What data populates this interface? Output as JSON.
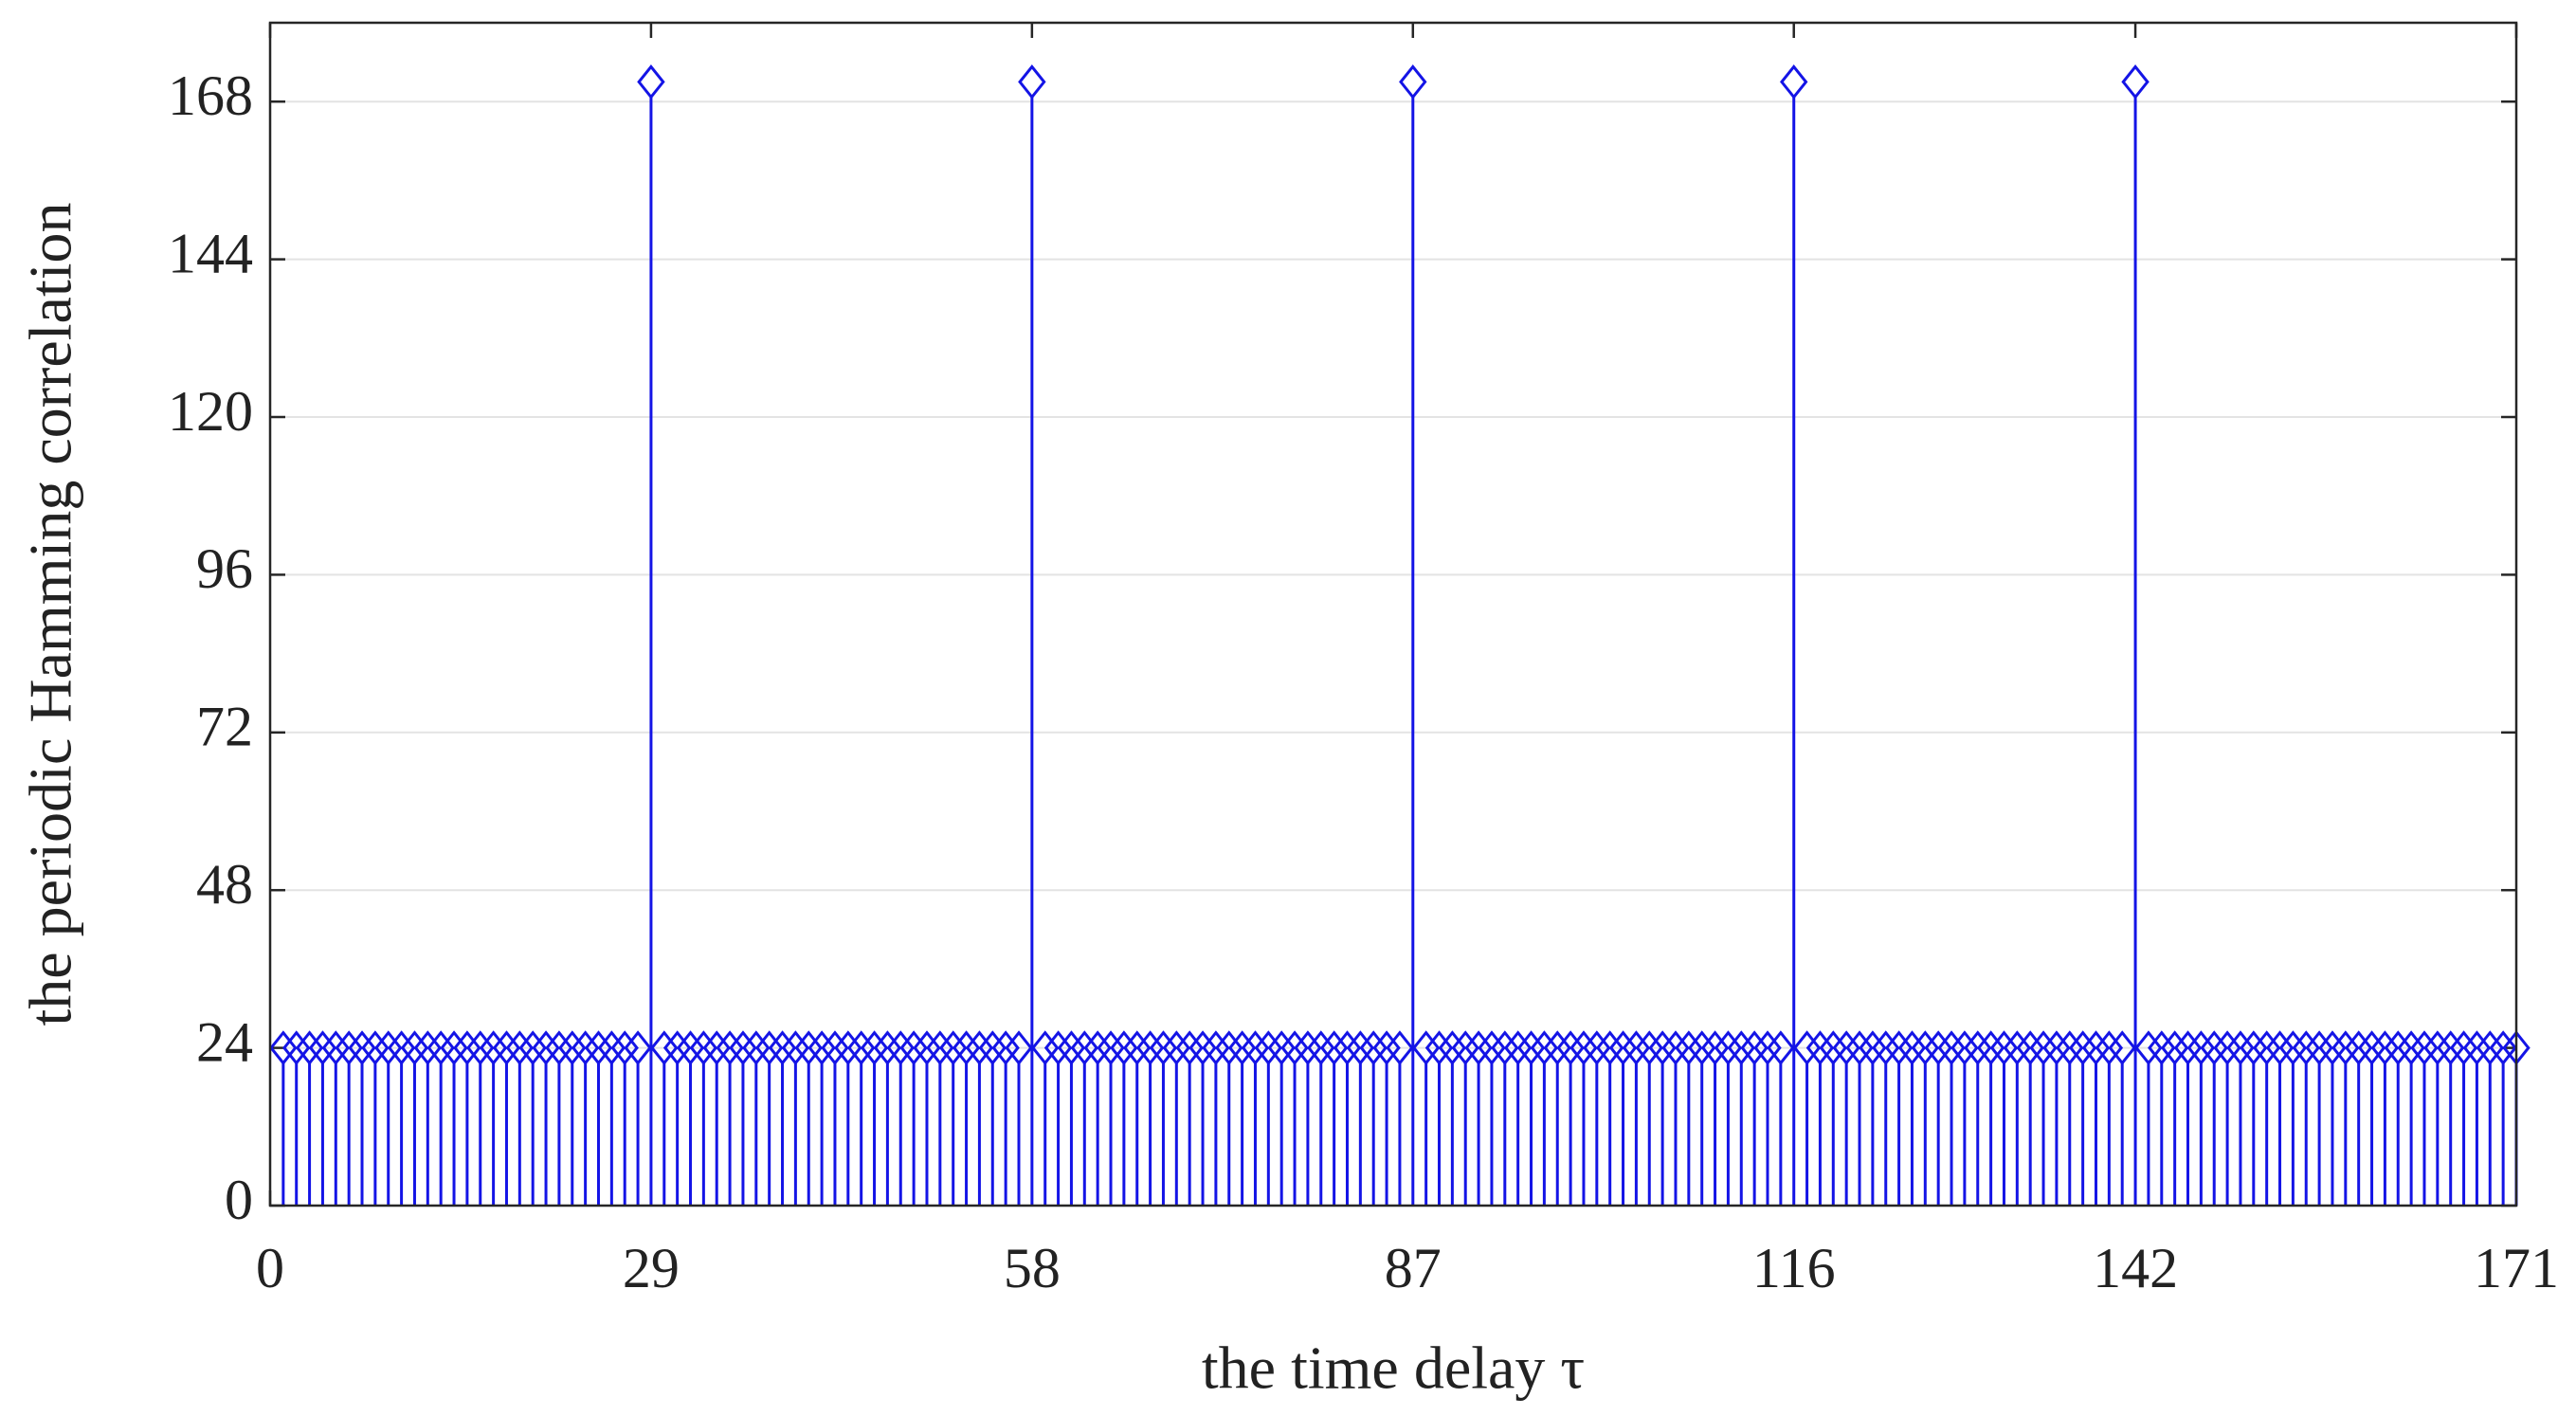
{
  "chart_data": {
    "type": "stem",
    "x_label": "the time delay τ",
    "y_label": "the periodic Hamming correlation",
    "x": [
      1,
      2,
      3,
      4,
      5,
      6,
      7,
      8,
      9,
      10,
      11,
      12,
      13,
      14,
      15,
      16,
      17,
      18,
      19,
      20,
      21,
      22,
      23,
      24,
      25,
      26,
      27,
      28,
      29,
      30,
      31,
      32,
      33,
      34,
      35,
      36,
      37,
      38,
      39,
      40,
      41,
      42,
      43,
      44,
      45,
      46,
      47,
      48,
      49,
      50,
      51,
      52,
      53,
      54,
      55,
      56,
      57,
      58,
      59,
      60,
      61,
      62,
      63,
      64,
      65,
      66,
      67,
      68,
      69,
      70,
      71,
      72,
      73,
      74,
      75,
      76,
      77,
      78,
      79,
      80,
      81,
      82,
      83,
      84,
      85,
      86,
      87,
      88,
      89,
      90,
      91,
      92,
      93,
      94,
      95,
      96,
      97,
      98,
      99,
      100,
      101,
      102,
      103,
      104,
      105,
      106,
      107,
      108,
      109,
      110,
      111,
      112,
      113,
      114,
      115,
      116,
      117,
      118,
      119,
      120,
      121,
      122,
      123,
      124,
      125,
      126,
      127,
      128,
      129,
      130,
      131,
      132,
      133,
      134,
      135,
      136,
      137,
      138,
      139,
      140,
      141,
      142,
      143,
      144,
      145,
      146,
      147,
      148,
      149,
      150,
      151,
      152,
      153,
      154,
      155,
      156,
      157,
      158,
      159,
      160,
      161,
      162,
      163,
      164,
      165,
      166,
      167,
      168,
      169,
      170,
      171
    ],
    "values": [
      24,
      24,
      24,
      24,
      24,
      24,
      24,
      24,
      24,
      24,
      24,
      24,
      24,
      24,
      24,
      24,
      24,
      24,
      24,
      24,
      24,
      24,
      24,
      24,
      24,
      24,
      24,
      24,
      171,
      24,
      24,
      24,
      24,
      24,
      24,
      24,
      24,
      24,
      24,
      24,
      24,
      24,
      24,
      24,
      24,
      24,
      24,
      24,
      24,
      24,
      24,
      24,
      24,
      24,
      24,
      24,
      24,
      171,
      24,
      24,
      24,
      24,
      24,
      24,
      24,
      24,
      24,
      24,
      24,
      24,
      24,
      24,
      24,
      24,
      24,
      24,
      24,
      24,
      24,
      24,
      24,
      24,
      24,
      24,
      24,
      24,
      171,
      24,
      24,
      24,
      24,
      24,
      24,
      24,
      24,
      24,
      24,
      24,
      24,
      24,
      24,
      24,
      24,
      24,
      24,
      24,
      24,
      24,
      24,
      24,
      24,
      24,
      24,
      24,
      24,
      171,
      24,
      24,
      24,
      24,
      24,
      24,
      24,
      24,
      24,
      24,
      24,
      24,
      24,
      24,
      24,
      24,
      24,
      24,
      24,
      24,
      24,
      24,
      24,
      24,
      24,
      171,
      24,
      24,
      24,
      24,
      24,
      24,
      24,
      24,
      24,
      24,
      24,
      24,
      24,
      24,
      24,
      24,
      24,
      24,
      24,
      24,
      24,
      24,
      24,
      24,
      24,
      24,
      24,
      24,
      24
    ],
    "color": "#1414e6",
    "xlim": [
      0,
      171
    ],
    "xticks": [
      0,
      29,
      58,
      87,
      116,
      142,
      171
    ],
    "ylim": [
      0,
      180
    ],
    "yticks": [
      0,
      24,
      48,
      72,
      96,
      120,
      144,
      168
    ],
    "grid": true
  }
}
